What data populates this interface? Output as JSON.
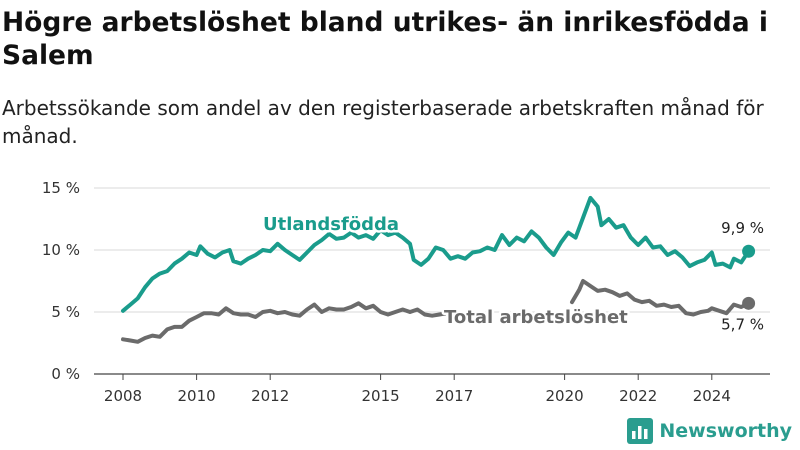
{
  "title": "Högre arbetslöshet bland utrikes- än inrikesfödda i Salem",
  "subtitle": "Arbetssökande som andel av den registerbaserade arbetskraften månad för månad.",
  "brand": {
    "name": "Newsworthy",
    "icon": "bar-chart-logo-icon",
    "color": "#2a9d8f"
  },
  "chart_data": {
    "type": "line",
    "title": "Högre arbetslöshet bland utrikes- än inrikesfödda i Salem",
    "xlabel": "",
    "ylabel": "",
    "xlim": [
      2007.6,
      2025.3
    ],
    "ylim": [
      0,
      15
    ],
    "xticks": [
      2008,
      2010,
      2012,
      2015,
      2017,
      2020,
      2022,
      2024
    ],
    "xtick_labels": [
      "2008",
      "2010",
      "2012",
      "2015",
      "2017",
      "2020",
      "2022",
      "2024"
    ],
    "yticks": [
      0,
      5,
      10,
      15
    ],
    "ytick_labels": [
      "0 %",
      "5 %",
      "10 %",
      "15 %"
    ],
    "grid": "horizontal",
    "legend": "none",
    "series": [
      {
        "name": "Utlandsfödda",
        "color": "#1a9c8c",
        "end_label": "9,9 %",
        "segments": [
          [
            [
              2008.0,
              5.1
            ],
            [
              2008.2,
              5.6
            ],
            [
              2008.4,
              6.1
            ],
            [
              2008.6,
              7.0
            ],
            [
              2008.8,
              7.7
            ],
            [
              2009.0,
              8.1
            ],
            [
              2009.2,
              8.3
            ],
            [
              2009.4,
              8.9
            ],
            [
              2009.6,
              9.3
            ],
            [
              2009.8,
              9.8
            ],
            [
              2010.0,
              9.6
            ],
            [
              2010.1,
              10.3
            ],
            [
              2010.3,
              9.7
            ],
            [
              2010.5,
              9.4
            ],
            [
              2010.7,
              9.8
            ],
            [
              2010.9,
              10.0
            ],
            [
              2011.0,
              9.1
            ],
            [
              2011.2,
              8.9
            ],
            [
              2011.4,
              9.3
            ],
            [
              2011.6,
              9.6
            ],
            [
              2011.8,
              10.0
            ],
            [
              2012.0,
              9.9
            ],
            [
              2012.2,
              10.5
            ],
            [
              2012.4,
              10.0
            ],
            [
              2012.6,
              9.6
            ],
            [
              2012.8,
              9.2
            ],
            [
              2013.0,
              9.8
            ],
            [
              2013.2,
              10.4
            ],
            [
              2013.4,
              10.8
            ],
            [
              2013.6,
              11.3
            ],
            [
              2013.8,
              10.9
            ],
            [
              2014.0,
              11.0
            ],
            [
              2014.2,
              11.4
            ],
            [
              2014.4,
              11.0
            ],
            [
              2014.6,
              11.2
            ],
            [
              2014.8,
              10.9
            ],
            [
              2015.0,
              11.6
            ],
            [
              2015.2,
              11.2
            ],
            [
              2015.4,
              11.4
            ],
            [
              2015.6,
              11.0
            ],
            [
              2015.8,
              10.5
            ],
            [
              2015.9,
              9.2
            ],
            [
              2016.1,
              8.8
            ],
            [
              2016.3,
              9.3
            ],
            [
              2016.5,
              10.2
            ],
            [
              2016.7,
              10.0
            ],
            [
              2016.9,
              9.3
            ],
            [
              2017.1,
              9.5
            ],
            [
              2017.3,
              9.3
            ],
            [
              2017.5,
              9.8
            ],
            [
              2017.7,
              9.9
            ],
            [
              2017.9,
              10.2
            ],
            [
              2018.1,
              10.0
            ],
            [
              2018.3,
              11.2
            ],
            [
              2018.5,
              10.4
            ],
            [
              2018.7,
              11.0
            ],
            [
              2018.9,
              10.7
            ],
            [
              2019.1,
              11.5
            ],
            [
              2019.3,
              11.0
            ],
            [
              2019.5,
              10.2
            ],
            [
              2019.7,
              9.6
            ],
            [
              2019.9,
              10.6
            ],
            [
              2020.1,
              11.4
            ],
            [
              2020.3,
              11.0
            ],
            [
              2020.5,
              12.6
            ],
            [
              2020.7,
              14.2
            ],
            [
              2020.9,
              13.5
            ],
            [
              2021.0,
              12.0
            ],
            [
              2021.2,
              12.5
            ],
            [
              2021.4,
              11.8
            ],
            [
              2021.6,
              12.0
            ],
            [
              2021.8,
              11.0
            ],
            [
              2022.0,
              10.4
            ],
            [
              2022.2,
              11.0
            ],
            [
              2022.4,
              10.2
            ],
            [
              2022.6,
              10.3
            ],
            [
              2022.8,
              9.6
            ],
            [
              2023.0,
              9.9
            ],
            [
              2023.2,
              9.4
            ],
            [
              2023.4,
              8.7
            ],
            [
              2023.6,
              9.0
            ],
            [
              2023.8,
              9.2
            ],
            [
              2024.0,
              9.8
            ],
            [
              2024.1,
              8.8
            ],
            [
              2024.3,
              8.9
            ],
            [
              2024.5,
              8.6
            ],
            [
              2024.6,
              9.3
            ],
            [
              2024.8,
              9.0
            ],
            [
              2025.0,
              9.9
            ]
          ]
        ]
      },
      {
        "name": "Total arbetslöshet",
        "color": "#6b6b6b",
        "end_label": "5,7 %",
        "segments": [
          [
            [
              2008.0,
              2.8
            ],
            [
              2008.2,
              2.7
            ],
            [
              2008.4,
              2.6
            ],
            [
              2008.6,
              2.9
            ],
            [
              2008.8,
              3.1
            ],
            [
              2009.0,
              3.0
            ],
            [
              2009.2,
              3.6
            ],
            [
              2009.4,
              3.8
            ],
            [
              2009.6,
              3.8
            ],
            [
              2009.8,
              4.3
            ],
            [
              2010.0,
              4.6
            ],
            [
              2010.2,
              4.9
            ],
            [
              2010.4,
              4.9
            ],
            [
              2010.6,
              4.8
            ],
            [
              2010.8,
              5.3
            ],
            [
              2011.0,
              4.9
            ],
            [
              2011.2,
              4.8
            ],
            [
              2011.4,
              4.8
            ],
            [
              2011.6,
              4.6
            ],
            [
              2011.8,
              5.0
            ],
            [
              2012.0,
              5.1
            ],
            [
              2012.2,
              4.9
            ],
            [
              2012.4,
              5.0
            ],
            [
              2012.6,
              4.8
            ],
            [
              2012.8,
              4.7
            ],
            [
              2013.0,
              5.2
            ],
            [
              2013.2,
              5.6
            ],
            [
              2013.4,
              5.0
            ],
            [
              2013.6,
              5.3
            ],
            [
              2013.8,
              5.2
            ],
            [
              2014.0,
              5.2
            ],
            [
              2014.2,
              5.4
            ],
            [
              2014.4,
              5.7
            ],
            [
              2014.6,
              5.3
            ],
            [
              2014.8,
              5.5
            ],
            [
              2015.0,
              5.0
            ],
            [
              2015.2,
              4.8
            ],
            [
              2015.4,
              5.0
            ],
            [
              2015.6,
              5.2
            ],
            [
              2015.8,
              5.0
            ],
            [
              2016.0,
              5.2
            ],
            [
              2016.2,
              4.8
            ],
            [
              2016.4,
              4.7
            ],
            [
              2016.6,
              4.8
            ],
            [
              2016.8,
              4.9
            ],
            [
              2017.0,
              4.4
            ],
            [
              2017.2,
              4.6
            ],
            [
              2017.4,
              4.3
            ],
            [
              2017.6,
              4.6
            ]
          ],
          [
            [
              2020.2,
              5.8
            ],
            [
              2020.4,
              6.8
            ],
            [
              2020.5,
              7.5
            ],
            [
              2020.7,
              7.1
            ],
            [
              2020.9,
              6.7
            ],
            [
              2021.1,
              6.8
            ],
            [
              2021.3,
              6.6
            ],
            [
              2021.5,
              6.3
            ],
            [
              2021.7,
              6.5
            ],
            [
              2021.9,
              6.0
            ],
            [
              2022.1,
              5.8
            ],
            [
              2022.3,
              5.9
            ],
            [
              2022.5,
              5.5
            ],
            [
              2022.7,
              5.6
            ],
            [
              2022.9,
              5.4
            ],
            [
              2023.1,
              5.5
            ],
            [
              2023.3,
              4.9
            ],
            [
              2023.5,
              4.8
            ],
            [
              2023.7,
              5.0
            ],
            [
              2023.9,
              5.1
            ],
            [
              2024.0,
              5.3
            ],
            [
              2024.2,
              5.1
            ],
            [
              2024.4,
              4.9
            ],
            [
              2024.6,
              5.6
            ],
            [
              2024.8,
              5.4
            ],
            [
              2025.0,
              5.7
            ]
          ]
        ]
      }
    ]
  }
}
